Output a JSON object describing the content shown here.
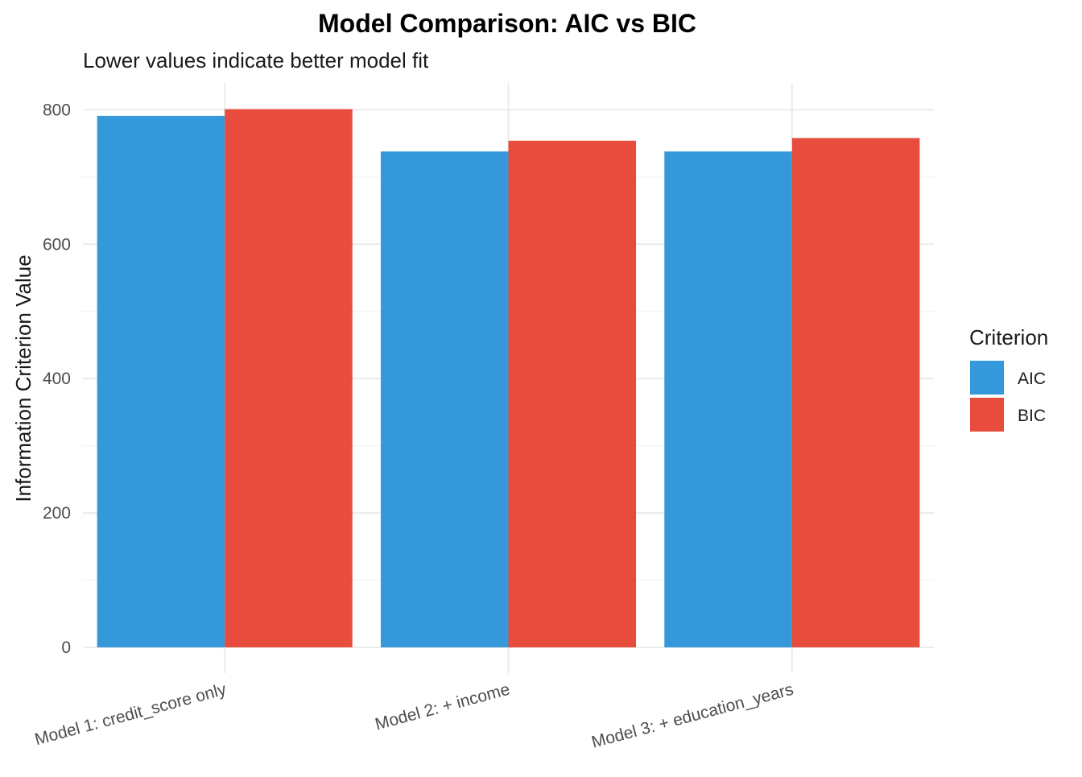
{
  "chart_data": {
    "type": "bar",
    "title": "Model Comparison: AIC vs BIC",
    "subtitle": "Lower values indicate better model fit",
    "xlabel": "",
    "ylabel": "Information Criterion Value",
    "categories": [
      "Model 1: credit_score only",
      "Model 2: + income",
      "Model 3: + education_years"
    ],
    "series": [
      {
        "name": "AIC",
        "color": "#3498DB",
        "values": [
          791,
          738,
          738
        ]
      },
      {
        "name": "BIC",
        "color": "#E74C3C",
        "values": [
          801,
          754,
          758
        ]
      }
    ],
    "ylim": [
      0,
      840
    ],
    "yticks": [
      0,
      200,
      400,
      600,
      800
    ],
    "ytick_labels": [
      "0",
      "200",
      "400",
      "600",
      "800"
    ],
    "grid": true,
    "legend": {
      "title": "Criterion",
      "position": "right"
    }
  }
}
